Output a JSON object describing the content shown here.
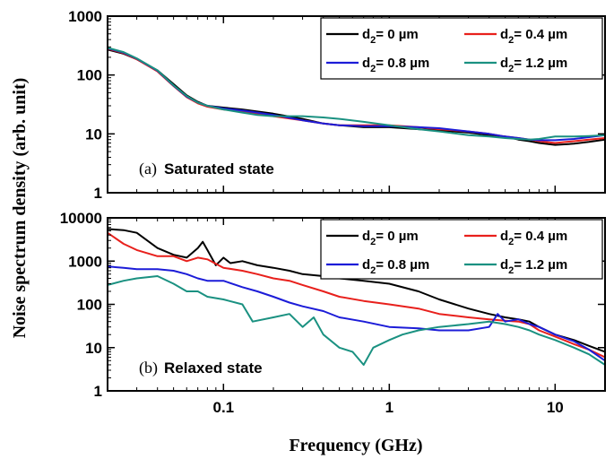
{
  "chart_data": [
    {
      "type": "line",
      "panel_letter": "(a)",
      "panel_title": "Saturated state",
      "xlabel": "Frequency (GHz)",
      "ylabel": "Noise spectrum density (arb. unit)",
      "xscale": "log",
      "yscale": "log",
      "xlim": [
        0.02,
        20
      ],
      "ylim": [
        1,
        1000
      ],
      "yticks": [
        "1",
        "10",
        "100",
        "1000"
      ],
      "xticks": [],
      "legend_position": "top-right",
      "series": [
        {
          "name_prefix": "d",
          "name_sub": "2",
          "name_suffix": "= 0 µm",
          "color": "#000000",
          "x": [
            0.02,
            0.025,
            0.03,
            0.04,
            0.05,
            0.06,
            0.07,
            0.08,
            0.1,
            0.13,
            0.16,
            0.2,
            0.3,
            0.4,
            0.5,
            0.7,
            1,
            1.5,
            2,
            3,
            4,
            5,
            6,
            7,
            8,
            10,
            13,
            16,
            20
          ],
          "y": [
            270,
            230,
            185,
            120,
            70,
            45,
            35,
            30,
            28,
            26,
            24,
            22,
            18,
            15,
            14,
            13,
            13,
            12,
            11.5,
            10.5,
            9.5,
            9,
            8,
            7.5,
            7,
            6.5,
            6.8,
            7.3,
            8
          ]
        },
        {
          "name_prefix": "d",
          "name_sub": "2",
          "name_suffix": "= 0.4 µm",
          "color": "#e8201c",
          "x": [
            0.02,
            0.025,
            0.03,
            0.04,
            0.05,
            0.06,
            0.07,
            0.08,
            0.1,
            0.13,
            0.16,
            0.2,
            0.3,
            0.4,
            0.5,
            0.7,
            1,
            1.5,
            2,
            3,
            4,
            5,
            6,
            7,
            8,
            10,
            13,
            16,
            20
          ],
          "y": [
            280,
            235,
            185,
            115,
            65,
            42,
            33,
            29,
            26,
            24,
            22,
            20,
            17,
            15,
            14,
            14,
            14,
            13,
            12,
            11,
            10,
            9,
            8.5,
            8,
            7.5,
            7,
            7.5,
            8,
            8.5
          ]
        },
        {
          "name_prefix": "d",
          "name_sub": "2",
          "name_suffix": "= 0.8 µm",
          "color": "#1c1cd8",
          "x": [
            0.02,
            0.025,
            0.03,
            0.04,
            0.05,
            0.06,
            0.07,
            0.08,
            0.1,
            0.13,
            0.16,
            0.2,
            0.3,
            0.4,
            0.5,
            0.7,
            1,
            1.5,
            2,
            3,
            4,
            5,
            6,
            7,
            8,
            10,
            13,
            16,
            20
          ],
          "y": [
            285,
            240,
            190,
            118,
            66,
            43,
            34,
            30,
            27,
            25,
            23,
            21,
            17,
            15,
            14,
            13.5,
            13.5,
            13,
            12.5,
            11,
            10,
            9,
            8.5,
            8,
            7.8,
            7.8,
            8.2,
            8.8,
            9.5
          ]
        },
        {
          "name_prefix": "d",
          "name_sub": "2",
          "name_suffix": "= 1.2 µm",
          "color": "#1a9181",
          "x": [
            0.02,
            0.025,
            0.03,
            0.04,
            0.05,
            0.06,
            0.07,
            0.08,
            0.1,
            0.13,
            0.16,
            0.2,
            0.3,
            0.4,
            0.5,
            0.7,
            1,
            1.5,
            2,
            3,
            4,
            5,
            6,
            7,
            8,
            10,
            13,
            16,
            20
          ],
          "y": [
            290,
            245,
            192,
            120,
            67,
            44,
            34,
            30,
            26,
            23,
            21,
            20,
            20,
            19,
            18,
            16,
            14,
            12,
            11,
            9.5,
            9,
            8.5,
            8.2,
            8,
            8.2,
            9,
            9,
            9.2,
            9.5
          ]
        }
      ]
    },
    {
      "type": "line",
      "panel_letter": "(b)",
      "panel_title": "Relaxed state",
      "xlabel": "Frequency (GHz)",
      "ylabel": "Noise spectrum density (arb. unit)",
      "xscale": "log",
      "yscale": "log",
      "xlim": [
        0.02,
        20
      ],
      "ylim": [
        1,
        10000
      ],
      "yticks": [
        "1",
        "10",
        "100",
        "1000",
        "10000"
      ],
      "xticks": [
        "0.1",
        "1",
        "10"
      ],
      "legend_position": "top-right",
      "series": [
        {
          "name_prefix": "d",
          "name_sub": "2",
          "name_suffix": "= 0 µm",
          "color": "#000000",
          "x": [
            0.02,
            0.025,
            0.03,
            0.04,
            0.05,
            0.06,
            0.07,
            0.075,
            0.08,
            0.09,
            0.1,
            0.11,
            0.13,
            0.16,
            0.2,
            0.25,
            0.3,
            0.4,
            0.5,
            0.7,
            1,
            1.5,
            2,
            3,
            4,
            5,
            6,
            7,
            8,
            10,
            13,
            16,
            20
          ],
          "y": [
            5500,
            5200,
            4500,
            2000,
            1400,
            1200,
            2000,
            2800,
            1800,
            800,
            1200,
            900,
            1000,
            800,
            700,
            600,
            500,
            450,
            400,
            350,
            300,
            200,
            130,
            80,
            60,
            50,
            45,
            40,
            30,
            20,
            15,
            11,
            8
          ]
        },
        {
          "name_prefix": "d",
          "name_sub": "2",
          "name_suffix": "= 0.4 µm",
          "color": "#e8201c",
          "x": [
            0.02,
            0.025,
            0.03,
            0.04,
            0.05,
            0.06,
            0.07,
            0.08,
            0.1,
            0.13,
            0.16,
            0.2,
            0.25,
            0.3,
            0.4,
            0.5,
            0.7,
            1,
            1.5,
            2,
            3,
            4,
            5,
            6,
            7,
            8,
            10,
            13,
            16,
            20
          ],
          "y": [
            4500,
            2500,
            1800,
            1300,
            1300,
            1000,
            1200,
            1100,
            700,
            600,
            500,
            400,
            350,
            280,
            200,
            150,
            120,
            100,
            80,
            60,
            50,
            45,
            42,
            40,
            35,
            25,
            18,
            12,
            9,
            6
          ]
        },
        {
          "name_prefix": "d",
          "name_sub": "2",
          "name_suffix": "= 0.8 µm",
          "color": "#1c1cd8",
          "x": [
            0.02,
            0.025,
            0.03,
            0.04,
            0.05,
            0.06,
            0.07,
            0.08,
            0.1,
            0.13,
            0.16,
            0.2,
            0.25,
            0.3,
            0.4,
            0.5,
            0.7,
            1,
            1.5,
            2,
            3,
            4,
            4.5,
            5,
            6,
            7,
            8,
            10,
            13,
            16,
            20
          ],
          "y": [
            750,
            700,
            650,
            650,
            600,
            500,
            400,
            350,
            350,
            250,
            200,
            150,
            110,
            90,
            70,
            50,
            40,
            30,
            28,
            25,
            25,
            30,
            60,
            40,
            45,
            35,
            30,
            20,
            14,
            9,
            5
          ]
        },
        {
          "name_prefix": "d",
          "name_sub": "2",
          "name_suffix": "= 1.2 µm",
          "color": "#1a9181",
          "x": [
            0.02,
            0.025,
            0.03,
            0.04,
            0.05,
            0.06,
            0.07,
            0.08,
            0.1,
            0.13,
            0.15,
            0.2,
            0.25,
            0.3,
            0.35,
            0.4,
            0.5,
            0.6,
            0.7,
            0.8,
            1,
            1.2,
            1.5,
            2,
            3,
            4,
            5,
            6,
            7,
            8,
            10,
            13,
            16,
            20
          ],
          "y": [
            280,
            350,
            400,
            450,
            300,
            200,
            200,
            150,
            130,
            100,
            40,
            50,
            60,
            30,
            50,
            20,
            10,
            8,
            4,
            10,
            15,
            20,
            25,
            30,
            35,
            40,
            35,
            30,
            25,
            20,
            15,
            10,
            7,
            4
          ]
        }
      ]
    }
  ]
}
